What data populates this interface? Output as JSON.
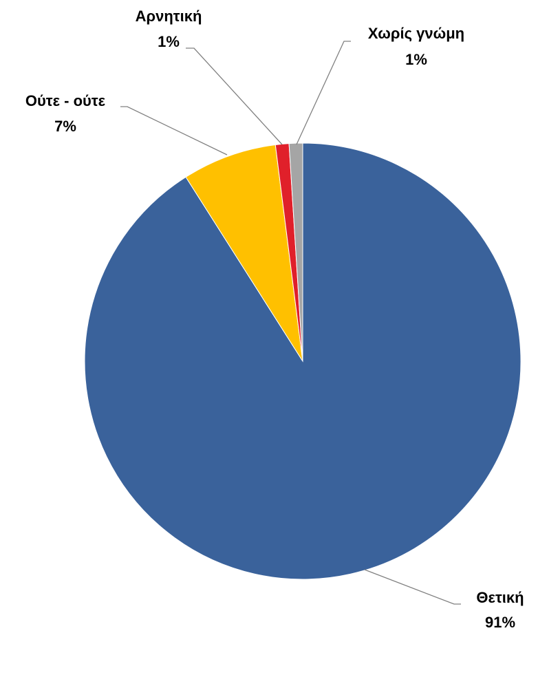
{
  "chart_data": {
    "type": "pie",
    "categories": [
      "Θετική",
      "Ούτε - ούτε",
      "Αρνητική",
      "Χωρίς γνώμη"
    ],
    "values": [
      91,
      7,
      1,
      1
    ],
    "value_labels": [
      "91%",
      "7%",
      "1%",
      "1%"
    ],
    "colors": [
      "#3a629b",
      "#ffc000",
      "#e0202a",
      "#a5a5a5"
    ]
  }
}
